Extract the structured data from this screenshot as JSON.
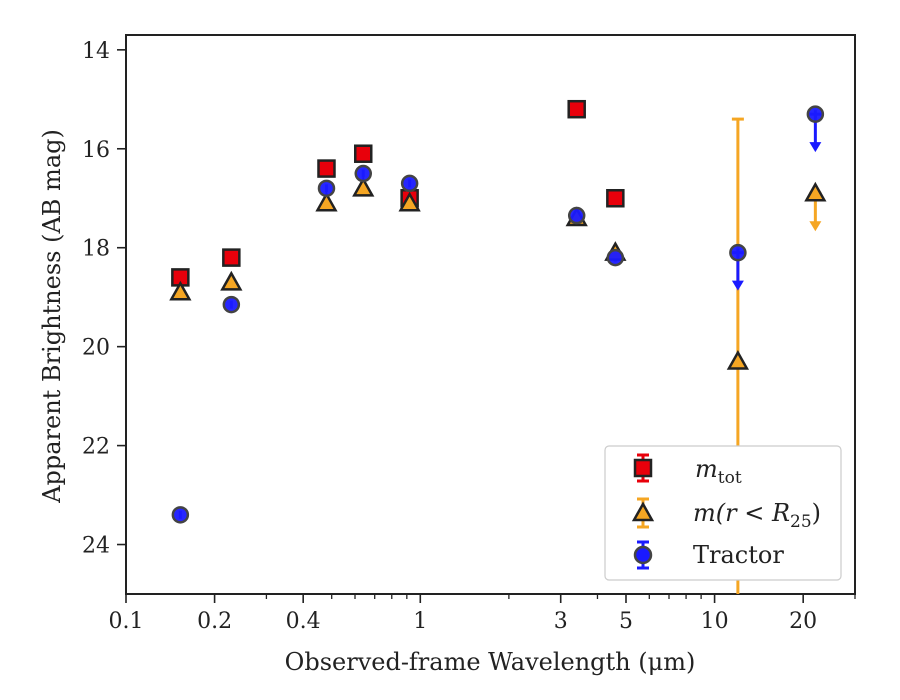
{
  "chart_data": {
    "type": "scatter",
    "title": "",
    "xlabel": "Observed-frame Wavelength (μm)",
    "ylabel": "Apparent Brightness (AB mag)",
    "x_scale": "log",
    "xlim": [
      0.1,
      30
    ],
    "ylim": [
      25,
      13.7
    ],
    "y_inverted": true,
    "x_ticks": [
      0.1,
      0.2,
      0.4,
      1,
      3,
      5,
      10,
      20
    ],
    "x_tick_labels": [
      "0.1",
      "0.2",
      "0.4",
      "1",
      "3",
      "5",
      "10",
      "20"
    ],
    "y_ticks": [
      14,
      16,
      18,
      20,
      22,
      24
    ],
    "y_tick_labels": [
      "14",
      "16",
      "18",
      "20",
      "22",
      "24"
    ],
    "grid": false,
    "legend_position": "lower-right",
    "series": [
      {
        "name": "m_tot",
        "marker": "square",
        "color": "#e8000b",
        "points": [
          {
            "x": 0.153,
            "y": 18.6
          },
          {
            "x": 0.228,
            "y": 18.2
          },
          {
            "x": 0.48,
            "y": 16.4
          },
          {
            "x": 0.64,
            "y": 16.1
          },
          {
            "x": 0.92,
            "y": 17.0
          },
          {
            "x": 3.4,
            "y": 15.2
          },
          {
            "x": 4.6,
            "y": 17.0
          }
        ]
      },
      {
        "name": "m(r < R25)",
        "marker": "triangle",
        "color": "#f5a623",
        "points": [
          {
            "x": 0.153,
            "y": 18.9
          },
          {
            "x": 0.228,
            "y": 18.7
          },
          {
            "x": 0.48,
            "y": 17.1
          },
          {
            "x": 0.64,
            "y": 16.8
          },
          {
            "x": 0.92,
            "y": 17.1
          },
          {
            "x": 3.4,
            "y": 17.4
          },
          {
            "x": 4.6,
            "y": 18.1
          },
          {
            "x": 12,
            "y": 20.3,
            "yerr_low": 15.4,
            "yerr_high": 25
          },
          {
            "x": 22,
            "y": 16.9,
            "upper_limit": true
          }
        ]
      },
      {
        "name": "Tractor",
        "marker": "circle",
        "color": "#1a1aff",
        "points": [
          {
            "x": 0.153,
            "y": 23.4
          },
          {
            "x": 0.228,
            "y": 19.15
          },
          {
            "x": 0.48,
            "y": 16.8
          },
          {
            "x": 0.64,
            "y": 16.5
          },
          {
            "x": 0.92,
            "y": 16.7
          },
          {
            "x": 3.4,
            "y": 17.35
          },
          {
            "x": 4.6,
            "y": 18.2
          },
          {
            "x": 12,
            "y": 18.1,
            "upper_limit": true
          },
          {
            "x": 22,
            "y": 15.3,
            "upper_limit": true
          }
        ]
      }
    ]
  },
  "legend": {
    "entries": [
      {
        "symbol_text": "m",
        "sub_text": "tot"
      },
      {
        "prefix": "m(r < R",
        "sub_text": "25",
        "suffix": ")"
      },
      {
        "text": "Tractor"
      }
    ]
  }
}
